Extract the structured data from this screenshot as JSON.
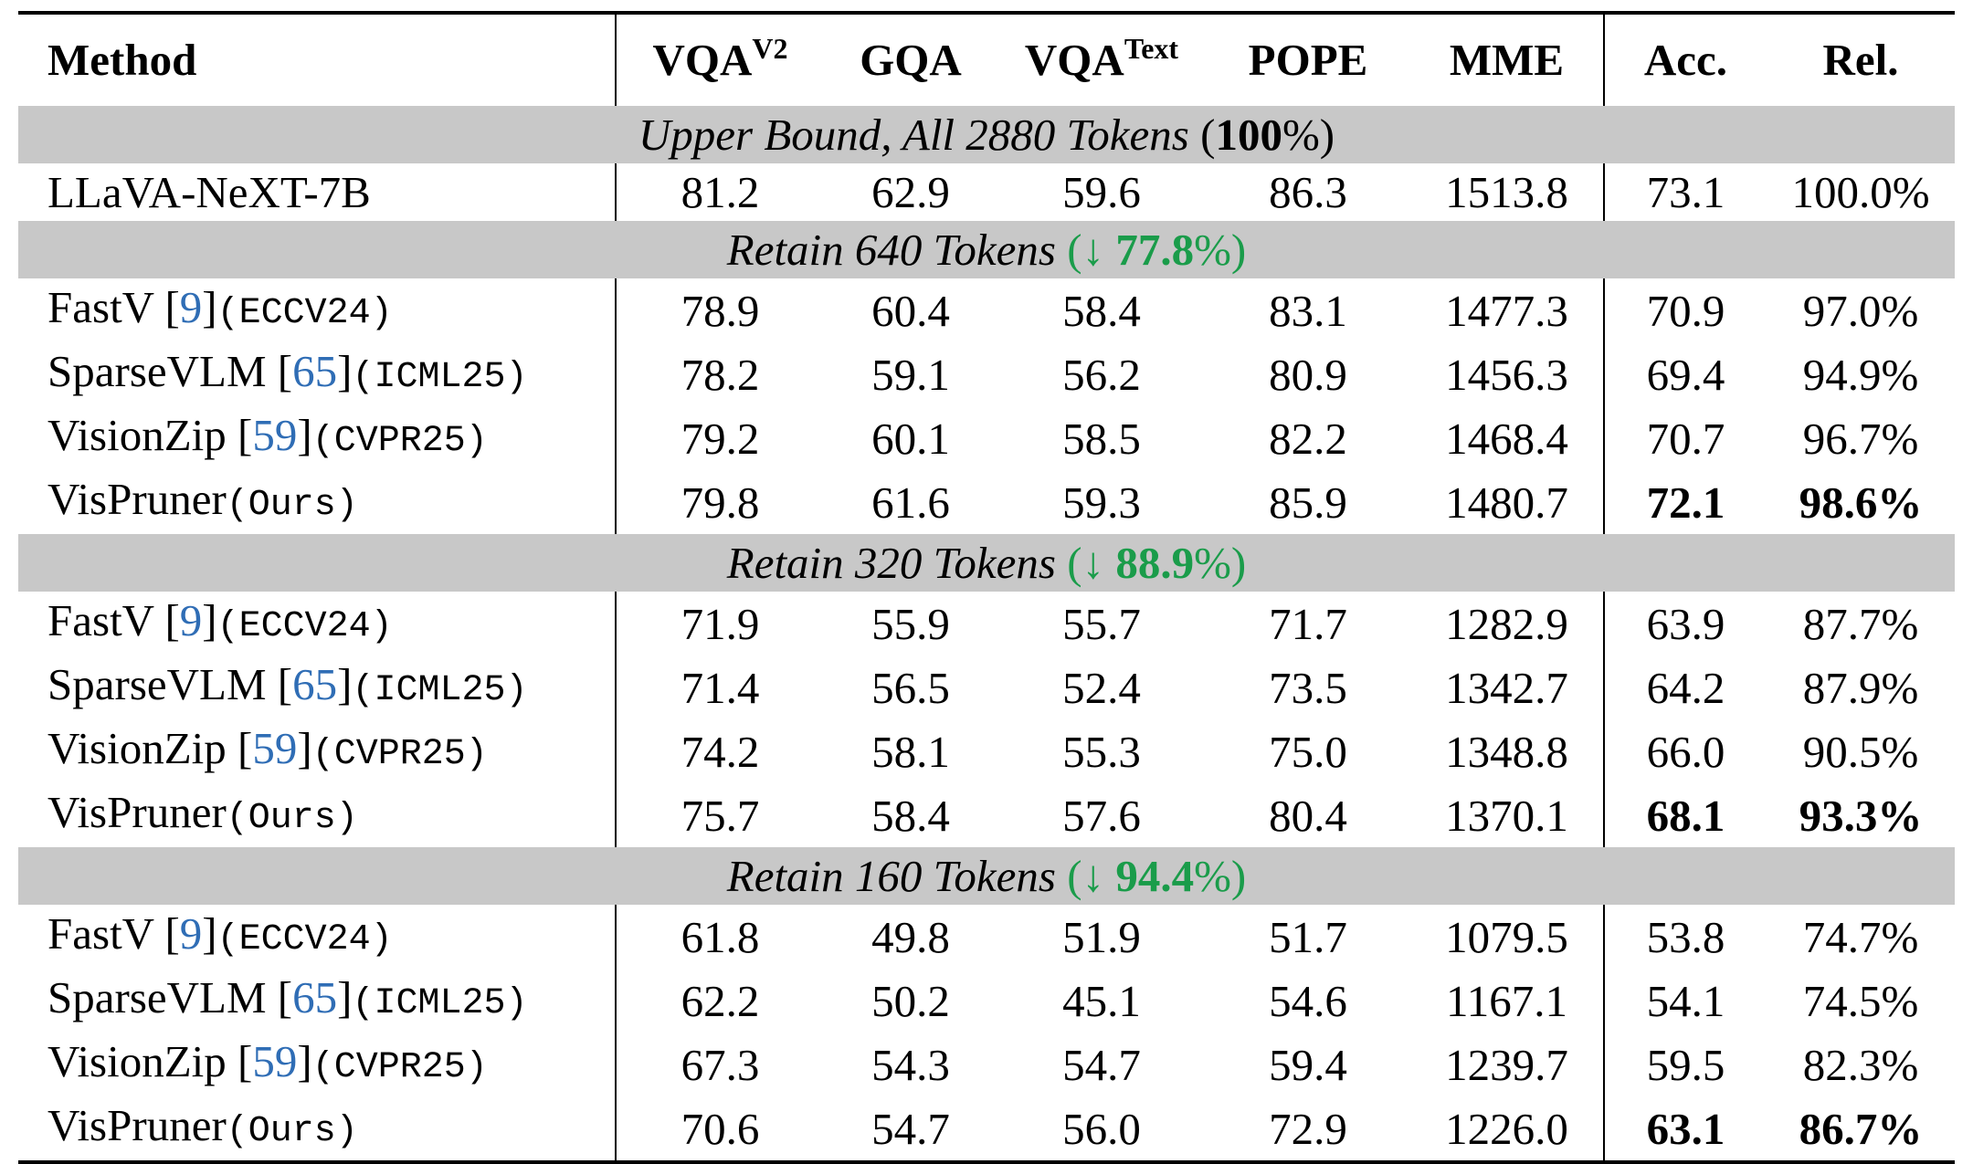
{
  "header": {
    "method": "Method",
    "vqav2": "VQA",
    "vqav2_sup": "V2",
    "gqa": "GQA",
    "vqatext": "VQA",
    "vqatext_sup": "Text",
    "pope": "POPE",
    "mme": "MME",
    "acc": "Acc.",
    "rel": "Rel."
  },
  "sections": [
    {
      "title": "Upper Bound, All 2880 Tokens",
      "pct_open": " (",
      "pct_value": "100",
      "pct_sign": "%",
      "pct_close": ")",
      "rows": [
        {
          "method": "LLaVA-NeXT-7B",
          "ref": "",
          "venue": "",
          "vqav2": "81.2",
          "gqa": "62.9",
          "vqatext": "59.6",
          "pope": "86.3",
          "mme": "1513.8",
          "acc": "73.1",
          "rel": "100.0%"
        }
      ]
    },
    {
      "title": "Retain 640 Tokens",
      "pct_open": " (↓ ",
      "pct_value": "77.8",
      "pct_sign": "%",
      "pct_close": ")",
      "rows": [
        {
          "method": "FastV ",
          "ref": "9",
          "venue": "(ECCV24)",
          "vqav2": "78.9",
          "gqa": "60.4",
          "vqatext": "58.4",
          "pope": "83.1",
          "mme": "1477.3",
          "acc": "70.9",
          "rel": "97.0%"
        },
        {
          "method": "SparseVLM ",
          "ref": "65",
          "venue": "(ICML25)",
          "vqav2": "78.2",
          "gqa": "59.1",
          "vqatext": "56.2",
          "pope": "80.9",
          "mme": "1456.3",
          "acc": "69.4",
          "rel": "94.9%"
        },
        {
          "method": "VisionZip ",
          "ref": "59",
          "venue": "(CVPR25)",
          "vqav2": "79.2",
          "gqa": "60.1",
          "vqatext": "58.5",
          "pope": "82.2",
          "mme": "1468.4",
          "acc": "70.7",
          "rel": "96.7%"
        },
        {
          "method": "VisPruner",
          "ref": "",
          "venue": "(Ours)",
          "vqav2": "79.8",
          "gqa": "61.6",
          "vqatext": "59.3",
          "pope": "85.9",
          "mme": "1480.7",
          "acc": "72.1",
          "rel": "98.6%"
        }
      ]
    },
    {
      "title": "Retain 320 Tokens",
      "pct_open": " (↓ ",
      "pct_value": "88.9",
      "pct_sign": "%",
      "pct_close": ")",
      "rows": [
        {
          "method": "FastV ",
          "ref": "9",
          "venue": "(ECCV24)",
          "vqav2": "71.9",
          "gqa": "55.9",
          "vqatext": "55.7",
          "pope": "71.7",
          "mme": "1282.9",
          "acc": "63.9",
          "rel": "87.7%"
        },
        {
          "method": "SparseVLM ",
          "ref": "65",
          "venue": "(ICML25)",
          "vqav2": "71.4",
          "gqa": "56.5",
          "vqatext": "52.4",
          "pope": "73.5",
          "mme": "1342.7",
          "acc": "64.2",
          "rel": "87.9%"
        },
        {
          "method": "VisionZip ",
          "ref": "59",
          "venue": "(CVPR25)",
          "vqav2": "74.2",
          "gqa": "58.1",
          "vqatext": "55.3",
          "pope": "75.0",
          "mme": "1348.8",
          "acc": "66.0",
          "rel": "90.5%"
        },
        {
          "method": "VisPruner",
          "ref": "",
          "venue": "(Ours)",
          "vqav2": "75.7",
          "gqa": "58.4",
          "vqatext": "57.6",
          "pope": "80.4",
          "mme": "1370.1",
          "acc": "68.1",
          "rel": "93.3%"
        }
      ]
    },
    {
      "title": "Retain 160 Tokens",
      "pct_open": " (↓ ",
      "pct_value": "94.4",
      "pct_sign": "%",
      "pct_close": ")",
      "rows": [
        {
          "method": "FastV ",
          "ref": "9",
          "venue": "(ECCV24)",
          "vqav2": "61.8",
          "gqa": "49.8",
          "vqatext": "51.9",
          "pope": "51.7",
          "mme": "1079.5",
          "acc": "53.8",
          "rel": "74.7%"
        },
        {
          "method": "SparseVLM ",
          "ref": "65",
          "venue": "(ICML25)",
          "vqav2": "62.2",
          "gqa": "50.2",
          "vqatext": "45.1",
          "pope": "54.6",
          "mme": "1167.1",
          "acc": "54.1",
          "rel": "74.5%"
        },
        {
          "method": "VisionZip ",
          "ref": "59",
          "venue": "(CVPR25)",
          "vqav2": "67.3",
          "gqa": "54.3",
          "vqatext": "54.7",
          "pope": "59.4",
          "mme": "1239.7",
          "acc": "59.5",
          "rel": "82.3%"
        },
        {
          "method": "VisPruner",
          "ref": "",
          "venue": "(Ours)",
          "vqav2": "70.6",
          "gqa": "54.7",
          "vqatext": "56.0",
          "pope": "72.9",
          "mme": "1226.0",
          "acc": "63.1",
          "rel": "86.7%"
        }
      ]
    }
  ],
  "colors": {
    "section_bg": "#c8c8c8",
    "reduction_green": "#1a9c4a",
    "citation_blue": "#2f6db5"
  }
}
